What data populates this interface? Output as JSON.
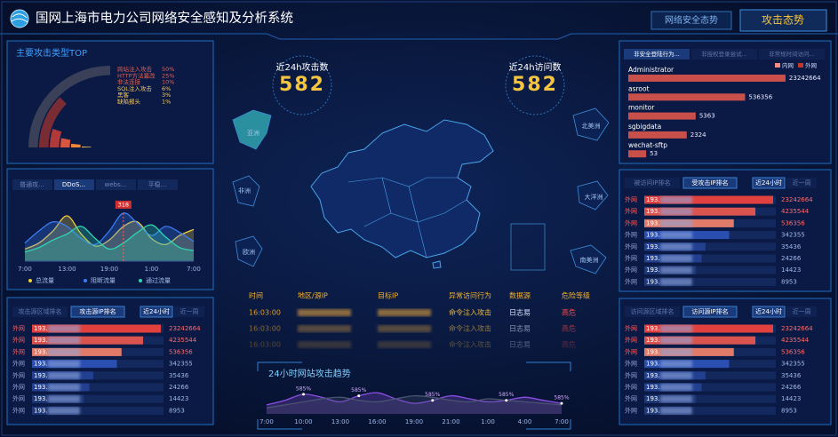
{
  "header": {
    "title": "国网上海市电力公司网络安全感知及分析系统",
    "tabs": [
      "网络安全态势",
      "攻击态势"
    ]
  },
  "stats": [
    {
      "label": "近24h攻击数",
      "value": 582
    },
    {
      "label": "近24h访问数",
      "value": 582
    }
  ],
  "map": {
    "regions": [
      "亚洲",
      "非洲",
      "欧洲",
      "北美洲",
      "大洋洲",
      "南美洲"
    ]
  },
  "events": {
    "columns": [
      "时间",
      "地区/源IP",
      "目标IP",
      "异常访问行为",
      "数据源",
      "危险等级"
    ],
    "rows": [
      {
        "time": "16:03:00",
        "behavior": "命令注入攻击",
        "source": "日志易",
        "level": "高危"
      },
      {
        "time": "16:03:00",
        "behavior": "命令注入攻击",
        "source": "日志易",
        "level": "高危"
      },
      {
        "time": "16:03:00",
        "behavior": "命令注入攻击",
        "source": "日志易",
        "level": "高危"
      }
    ]
  },
  "chart_data": [
    {
      "type": "radial_bar",
      "title": "主要攻击类型TOP",
      "categories": [
        "跨站注入攻击",
        "HTTP方法篡改",
        "非法连接",
        "SQL注入攻击",
        "黑客",
        "缺陷报头"
      ],
      "values": [
        50,
        25,
        10,
        6,
        3,
        1
      ],
      "value_labels": [
        "50%",
        "25%",
        "10%",
        "6%",
        "3%",
        "1%"
      ],
      "colors": [
        "#3a4058",
        "#7a2c34",
        "#b03a3a",
        "#d8553f",
        "#f08a3a",
        "#f5c85a"
      ],
      "xlim": [
        0,
        50
      ]
    },
    {
      "type": "area",
      "tabs": [
        "普通攻...",
        "DDoS...",
        "webs...",
        "平稳..."
      ],
      "categories": [
        "7:00",
        null,
        null,
        "13:00",
        null,
        null,
        "19:00",
        null,
        null,
        "1:00",
        null,
        null,
        "7:00"
      ],
      "series": [
        {
          "name": "总流量",
          "color": "#f2d03b",
          "values": [
            80,
            120,
            200,
            300,
            180,
            100,
            140,
            230,
            260,
            150,
            110,
            170,
            210
          ]
        },
        {
          "name": "阻断流量",
          "color": "#3b7cf2",
          "values": [
            120,
            200,
            260,
            230,
            150,
            110,
            200,
            318,
            250,
            170,
            230,
            190,
            130
          ]
        },
        {
          "name": "通过流量",
          "color": "#2fd6b0",
          "values": [
            60,
            90,
            140,
            180,
            230,
            150,
            80,
            120,
            190,
            240,
            160,
            90,
            70
          ]
        }
      ],
      "ylim": [
        0,
        400
      ]
    },
    {
      "type": "hbar",
      "log_scale": true,
      "tabs": [
        "攻击源区域排名",
        "攻击源IP排名",
        "近24小时",
        "近一周"
      ],
      "groups": [
        "外网",
        "外网",
        "外网",
        "外网",
        "外网",
        "外网",
        "外网",
        "外网"
      ],
      "categories": [
        "193.",
        "193.",
        "193.",
        "193.",
        "193.",
        "193.",
        "193.",
        "193."
      ],
      "values": [
        23242664,
        4235544,
        536356,
        342355,
        35436,
        24266,
        14423,
        8953
      ],
      "colors": [
        "#e0413e",
        "#d9534f",
        "#e07b6a",
        "#2a4fb0",
        "#22408f",
        "#22408f",
        "#1e3878",
        "#1e3878"
      ],
      "xlim": [
        100,
        30000000
      ]
    },
    {
      "type": "hbar",
      "log_scale": true,
      "tabs": [
        "非安全登陆行为...",
        "非授权登录尝试...",
        "非常规时间访问..."
      ],
      "legend": [
        {
          "name": "内网",
          "color": "#f28b82"
        },
        {
          "name": "外网",
          "color": "#c0392b"
        }
      ],
      "categories": [
        "Administrator",
        "asroot",
        "monitor",
        "sgbigdata",
        "wechat-sftp"
      ],
      "values": [
        23242664,
        536356,
        5363,
        2324,
        53
      ],
      "color": "#c9504a",
      "xlim": [
        10,
        30000000
      ]
    },
    {
      "type": "hbar",
      "log_scale": true,
      "tabs": [
        "被访问IP排名",
        "受攻击IP排名",
        "近24小时",
        "近一周"
      ],
      "groups": [
        "外网",
        "外网",
        "外网",
        "外网",
        "外网",
        "外网",
        "外网",
        "外网"
      ],
      "categories": [
        "193.",
        "193.",
        "193.",
        "193.",
        "193.",
        "193.",
        "193.",
        "193."
      ],
      "values": [
        23242664,
        4235544,
        536356,
        342355,
        35436,
        24266,
        14423,
        8953
      ],
      "colors": [
        "#e0413e",
        "#d9534f",
        "#e07b6a",
        "#2a4fb0",
        "#22408f",
        "#22408f",
        "#1e3878",
        "#1e3878"
      ],
      "xlim": [
        100,
        30000000
      ]
    },
    {
      "type": "hbar",
      "log_scale": true,
      "tabs": [
        "访问源区域排名",
        "访问源IP排名",
        "近24小时",
        "近一周"
      ],
      "groups": [
        "外网",
        "外网",
        "外网",
        "外网",
        "外网",
        "外网",
        "外网",
        "外网"
      ],
      "categories": [
        "193.",
        "193.",
        "193.",
        "193.",
        "193.",
        "193.",
        "193.",
        "193."
      ],
      "values": [
        23242664,
        4235544,
        536356,
        342355,
        35436,
        24266,
        14423,
        8953
      ],
      "colors": [
        "#e0413e",
        "#d9534f",
        "#e07b6a",
        "#2a4fb0",
        "#22408f",
        "#22408f",
        "#1e3878",
        "#1e3878"
      ],
      "xlim": [
        100,
        30000000
      ]
    },
    {
      "type": "area",
      "title": "24小时网站攻击趋势",
      "categories": [
        "7:00",
        null,
        "10:00",
        null,
        "13:00",
        null,
        "16:00",
        null,
        "19:00",
        null,
        "21:00",
        null,
        "1:00",
        null,
        "4:00",
        null,
        "7:00"
      ],
      "series": [
        {
          "color": "#8a4fe0",
          "values": [
            30,
            45,
            65,
            55,
            40,
            60,
            70,
            50,
            35,
            45,
            60,
            50,
            40,
            45,
            55,
            45,
            35
          ]
        },
        {
          "color": "#4a5470",
          "values": [
            20,
            30,
            40,
            50,
            55,
            45,
            40,
            50,
            60,
            55,
            45,
            40,
            50,
            45,
            40,
            35,
            30
          ]
        }
      ],
      "annotations": [
        "585%",
        "585%",
        "585%",
        "585%",
        "585%"
      ],
      "ylim": [
        0,
        100
      ]
    }
  ]
}
